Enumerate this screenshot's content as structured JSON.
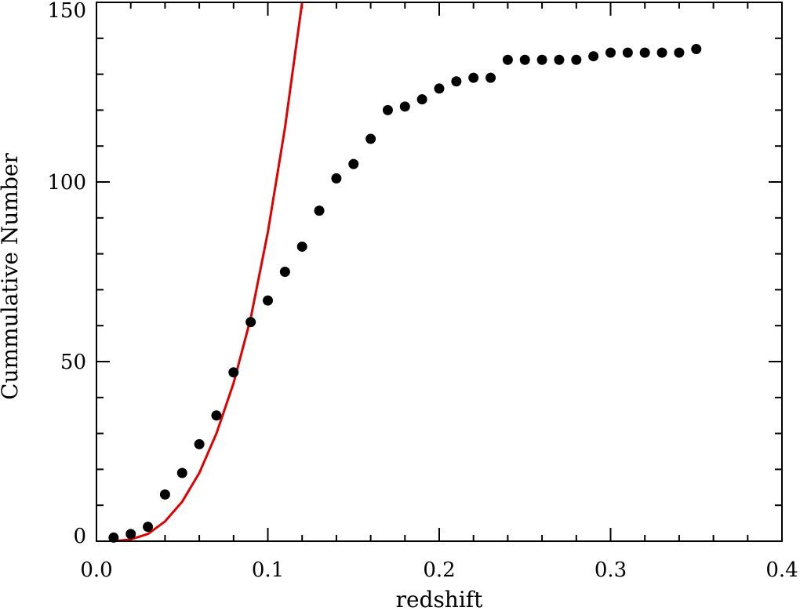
{
  "chart_data": {
    "type": "scatter",
    "title": "",
    "xlabel": "redshift",
    "ylabel": "Cummulative Number",
    "xlim": [
      0.0,
      0.4
    ],
    "ylim": [
      0,
      150
    ],
    "x_ticks": [
      0.0,
      0.1,
      0.2,
      0.3,
      0.4
    ],
    "x_tick_labels": [
      "0.0",
      "0.1",
      "0.2",
      "0.3",
      "0.4"
    ],
    "y_ticks": [
      0,
      50,
      100,
      150
    ],
    "y_tick_labels": [
      "0",
      "50",
      "100",
      "150"
    ],
    "x_minor_step": 0.02,
    "y_minor_step": 10,
    "grid": false,
    "legend": "none",
    "points": {
      "color": "#000000",
      "x": [
        0.01,
        0.02,
        0.03,
        0.04,
        0.05,
        0.06,
        0.07,
        0.08,
        0.09,
        0.1,
        0.11,
        0.12,
        0.13,
        0.14,
        0.15,
        0.16,
        0.17,
        0.18,
        0.19,
        0.2,
        0.21,
        0.22,
        0.23,
        0.24,
        0.25,
        0.26,
        0.27,
        0.28,
        0.29,
        0.3,
        0.31,
        0.32,
        0.33,
        0.34,
        0.35
      ],
      "y": [
        1,
        2,
        4,
        13,
        19,
        27,
        35,
        47,
        61,
        67,
        75,
        82,
        92,
        101,
        105,
        112,
        120,
        121,
        123,
        126,
        128,
        129,
        129,
        134,
        134,
        134,
        134,
        134,
        135,
        136,
        136,
        136,
        136,
        136,
        137
      ]
    },
    "curve": {
      "color": "#e00000",
      "x": [
        0.01,
        0.02,
        0.03,
        0.04,
        0.05,
        0.06,
        0.07,
        0.08,
        0.09,
        0.1,
        0.11,
        0.12
      ],
      "y": [
        0,
        0.5,
        2,
        5.5,
        11,
        19,
        30,
        44,
        62,
        86,
        115,
        150
      ]
    }
  }
}
